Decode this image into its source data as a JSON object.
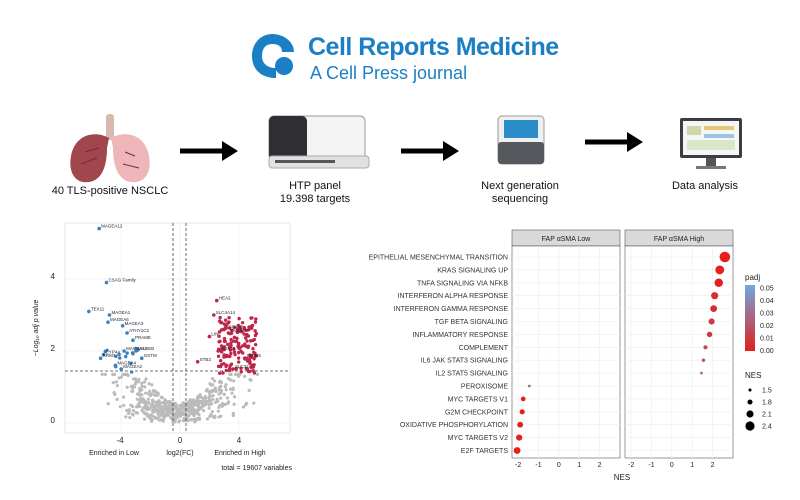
{
  "brand": {
    "title": "Cell Reports Medicine",
    "subtitle": "A Cell Press journal"
  },
  "workflow": {
    "steps": [
      {
        "label": "40 TLS-positive NSCLC",
        "icon": "lungs-icon"
      },
      {
        "label": "HTP panel\n19.398 targets",
        "icon": "sequencer-icon"
      },
      {
        "label": "Next generation\nsequencing",
        "icon": "ngs-machine-icon"
      },
      {
        "label": "Data analysis",
        "icon": "computer-monitor-icon"
      }
    ]
  },
  "volcano": {
    "ylabel": "−Log₁₀ adj p value",
    "xlabel": "log2(FC)",
    "left_caption": "Enriched in Low",
    "right_caption": "Enriched in High",
    "total": "total = 19607 variables",
    "x_ticks": [
      "-4",
      "0",
      "4"
    ],
    "y_ticks": [
      "0",
      "2",
      "4"
    ],
    "low_genes": [
      "MAGEA12",
      "CSAG Family",
      "TEX11",
      "MAGEA1",
      "MAGEA6",
      "MAGEA3",
      "ATHY1C2",
      "PRAME",
      "CYP4A",
      "MAGEA10",
      "MAGEB",
      "RRM3",
      "GSTM",
      "MAGEA4",
      "MAGEA2"
    ],
    "high_genes": [
      "HEA2",
      "SLC4A14",
      "TSPAN5",
      "TMEM73",
      "LIN",
      "MUS13",
      "STB3",
      "SMIM5",
      "SLC32A"
    ],
    "colors": {
      "low": "#3d7fc0",
      "high": "#c0254a",
      "ns": "#bbbbbb"
    }
  },
  "chart_data": {
    "type": "scatter",
    "xlabel": "NES",
    "ylabel": "",
    "panels": [
      "FAP αSMA Low",
      "FAP αSMA High"
    ],
    "x_ticks": [
      -2,
      -1,
      0,
      1,
      2
    ],
    "xlim": [
      -2.3,
      3.0
    ],
    "pathways": [
      "EPITHELIAL MESENCHYMAL TRANSITION",
      "KRAS SIGNALING UP",
      "TNFA SIGNALING VIA NFKB",
      "INTERFERON ALPHA RESPONSE",
      "INTERFERON GAMMA RESPONSE",
      "TGF BETA SIGNALING",
      "INFLAMMATORY RESPONSE",
      "COMPLEMENT",
      "IL6 JAK STAT3 SIGNALING",
      "IL2 STAT5 SIGNALING",
      "PEROXISOME",
      "MYC TARGETS V1",
      "G2M CHECKPOINT",
      "OXIDATIVE PHOSPHORYLATION",
      "MYC TARGETS V2",
      "E2F TARGETS"
    ],
    "points": [
      {
        "pathway": "EPITHELIAL MESENCHYMAL TRANSITION",
        "panel": "FAP αSMA High",
        "nes": 2.6,
        "padj": 0.0
      },
      {
        "pathway": "KRAS SIGNALING UP",
        "panel": "FAP αSMA High",
        "nes": 2.35,
        "padj": 0.0
      },
      {
        "pathway": "TNFA SIGNALING VIA NFKB",
        "panel": "FAP αSMA High",
        "nes": 2.3,
        "padj": 0.0
      },
      {
        "pathway": "INTERFERON ALPHA RESPONSE",
        "panel": "FAP αSMA High",
        "nes": 2.1,
        "padj": 0.005
      },
      {
        "pathway": "INTERFERON GAMMA RESPONSE",
        "panel": "FAP αSMA High",
        "nes": 2.05,
        "padj": 0.005
      },
      {
        "pathway": "TGF BETA SIGNALING",
        "panel": "FAP αSMA High",
        "nes": 1.95,
        "padj": 0.01
      },
      {
        "pathway": "INFLAMMATORY RESPONSE",
        "panel": "FAP αSMA High",
        "nes": 1.85,
        "padj": 0.01
      },
      {
        "pathway": "COMPLEMENT",
        "panel": "FAP αSMA High",
        "nes": 1.65,
        "padj": 0.015
      },
      {
        "pathway": "IL6 JAK STAT3 SIGNALING",
        "panel": "FAP αSMA High",
        "nes": 1.55,
        "padj": 0.02
      },
      {
        "pathway": "IL2 STAT5 SIGNALING",
        "panel": "FAP αSMA High",
        "nes": 1.45,
        "padj": 0.025
      },
      {
        "pathway": "PEROXISOME",
        "panel": "FAP αSMA Low",
        "nes": -1.45,
        "padj": 0.03
      },
      {
        "pathway": "MYC TARGETS V1",
        "panel": "FAP αSMA Low",
        "nes": -1.75,
        "padj": 0.0
      },
      {
        "pathway": "G2M CHECKPOINT",
        "panel": "FAP αSMA Low",
        "nes": -1.8,
        "padj": 0.0
      },
      {
        "pathway": "OXIDATIVE PHOSPHORYLATION",
        "panel": "FAP αSMA Low",
        "nes": -1.9,
        "padj": 0.0
      },
      {
        "pathway": "MYC TARGETS V2",
        "panel": "FAP αSMA Low",
        "nes": -1.95,
        "padj": 0.0
      },
      {
        "pathway": "E2F TARGETS",
        "panel": "FAP αSMA Low",
        "nes": -2.05,
        "padj": 0.0
      }
    ],
    "legend_padj": {
      "title": "padj",
      "ticks": [
        "0.05",
        "0.04",
        "0.03",
        "0.02",
        "0.01",
        "0.00"
      ]
    },
    "legend_nes": {
      "title": "NES",
      "values": [
        "1.5",
        "1.8",
        "2.1",
        "2.4"
      ]
    },
    "colors": {
      "low_padj": "#e51e1e",
      "high_padj": "#6fa8dc"
    }
  }
}
